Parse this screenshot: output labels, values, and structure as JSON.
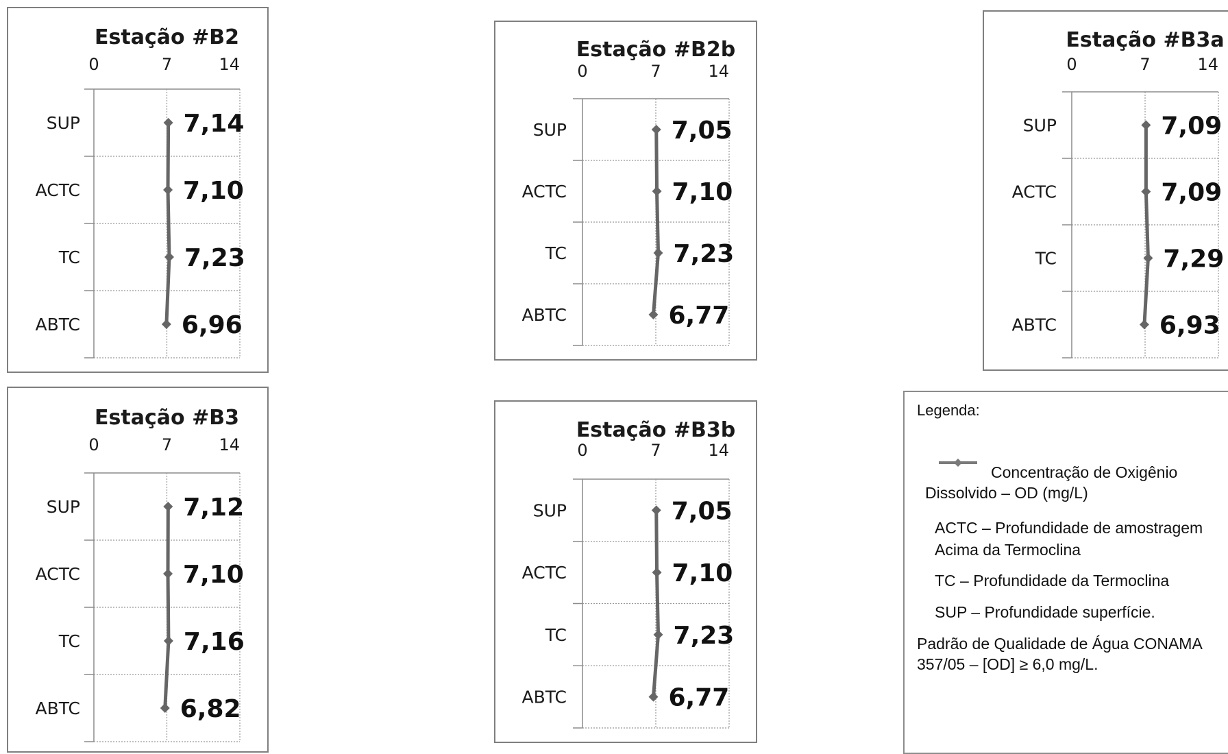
{
  "chart_data": [
    {
      "type": "line",
      "title": "Estação #B2",
      "xlim": [
        0,
        14
      ],
      "xticks": [
        "0",
        "7",
        "14"
      ],
      "categories": [
        "SUP",
        "ACTC",
        "TC",
        "ABTC"
      ],
      "values": [
        7.14,
        7.1,
        7.23,
        6.96
      ],
      "labels": [
        "7,14",
        "7,10",
        "7,23",
        "6,96"
      ]
    },
    {
      "type": "line",
      "title": "Estação #B2b",
      "xlim": [
        0,
        14
      ],
      "xticks": [
        "0",
        "7",
        "14"
      ],
      "categories": [
        "SUP",
        "ACTC",
        "TC",
        "ABTC"
      ],
      "values": [
        7.05,
        7.1,
        7.23,
        6.77
      ],
      "labels": [
        "7,05",
        "7,10",
        "7,23",
        "6,77"
      ]
    },
    {
      "type": "line",
      "title": "Estação #B3a",
      "xlim": [
        0,
        14
      ],
      "xticks": [
        "0",
        "7",
        "14"
      ],
      "categories": [
        "SUP",
        "ACTC",
        "TC",
        "ABTC"
      ],
      "values": [
        7.09,
        7.09,
        7.29,
        6.93
      ],
      "labels": [
        "7,09",
        "7,09",
        "7,29",
        "6,93"
      ]
    },
    {
      "type": "line",
      "title": "Estação #B3",
      "xlim": [
        0,
        14
      ],
      "xticks": [
        "0",
        "7",
        "14"
      ],
      "categories": [
        "SUP",
        "ACTC",
        "TC",
        "ABTC"
      ],
      "values": [
        7.12,
        7.1,
        7.16,
        6.82
      ],
      "labels": [
        "7,12",
        "7,10",
        "7,16",
        "6,82"
      ]
    },
    {
      "type": "line",
      "title": "Estação #B3b",
      "xlim": [
        0,
        14
      ],
      "xticks": [
        "0",
        "7",
        "14"
      ],
      "categories": [
        "SUP",
        "ACTC",
        "TC",
        "ABTC"
      ],
      "values": [
        7.05,
        7.1,
        7.23,
        6.77
      ],
      "labels": [
        "7,05",
        "7,10",
        "7,23",
        "6,77"
      ]
    }
  ],
  "style": {
    "line_color": "#666666",
    "grid_color": "#999999",
    "axis_color": "#8c8c8c"
  },
  "legend": {
    "title": "Legenda:",
    "series_line1": "Concentração de Oxigênio",
    "series_line2": "Dissolvido – OD (mg/L)",
    "actc": "ACTC – Profundidade de amostragem Acima da Termoclina",
    "tc": "TC – Profundidade da Termoclina",
    "sup": "SUP – Profundidade superfície.",
    "padrao": "Padrão de Qualidade de Água CONAMA 357/05 – [OD] ≥ 6,0 mg/L."
  }
}
